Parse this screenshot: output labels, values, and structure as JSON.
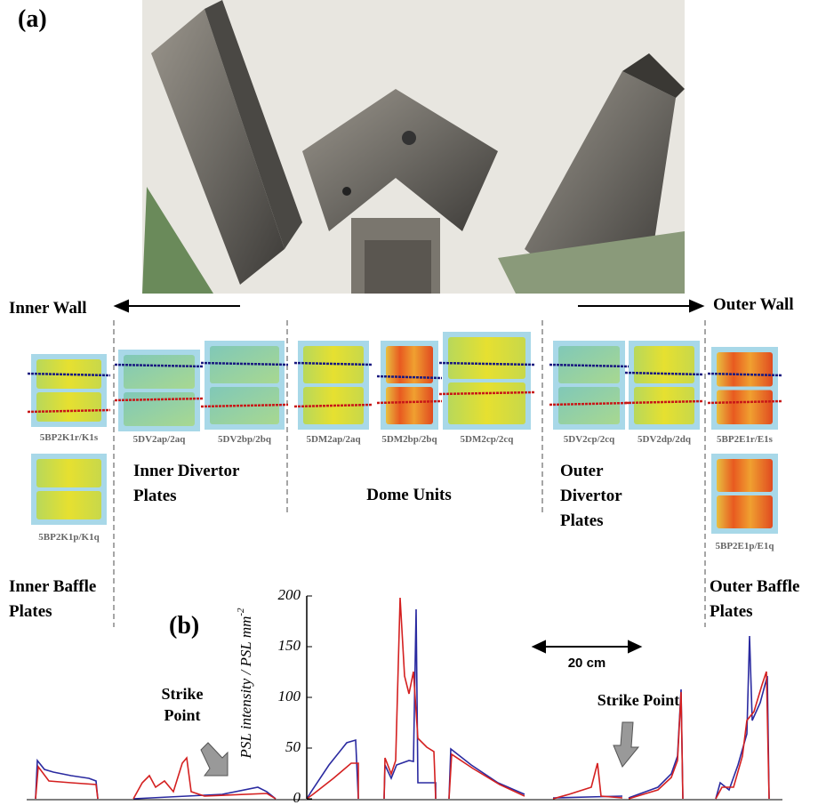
{
  "panel_a_label": "(a)",
  "panel_b_label": "(b)",
  "inner_wall": "Inner Wall",
  "outer_wall": "Outer Wall",
  "plates": [
    "5BP2K1r/K1s",
    "5BP2K1p/K1q",
    "5DV2ap/2aq",
    "5DV2bp/2bq",
    "5DM2ap/2aq",
    "5DM2bp/2bq",
    "5DM2cp/2cq",
    "5DV2cp/2cq",
    "5DV2dp/2dq",
    "5BP2E1r/E1s",
    "5BP2E1p/E1q"
  ],
  "groups": [
    {
      "lines": [
        "Inner Divertor",
        "Plates"
      ]
    },
    {
      "lines": [
        "Dome Units"
      ]
    },
    {
      "lines": [
        "Outer",
        "Divertor",
        "Plates"
      ]
    },
    {
      "lines": [
        "Inner Baffle",
        "Plates"
      ]
    },
    {
      "lines": [
        "Outer Baffle",
        "Plates"
      ]
    }
  ],
  "y_axis": {
    "label": "PSL intensity / PSL mm",
    "label_sup": "-2",
    "ticks": [
      0,
      50,
      100,
      150,
      200
    ]
  },
  "scale_bar": "20 cm",
  "strike_point_1": [
    "Strike",
    "Point"
  ],
  "strike_point_2": "Strike Point"
}
